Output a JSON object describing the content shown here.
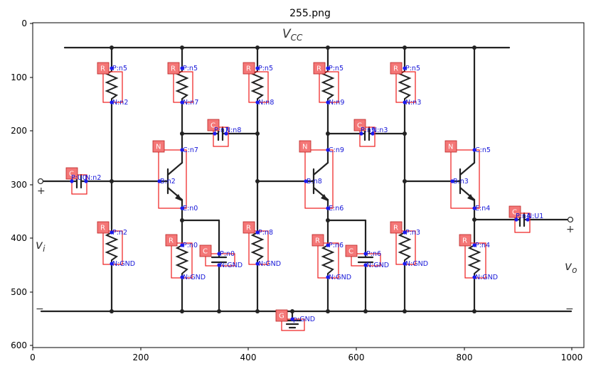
{
  "title": "255.png",
  "x_ticks": [
    "0",
    "200",
    "400",
    "600",
    "800",
    "1000"
  ],
  "y_ticks": [
    "0",
    "100",
    "200",
    "300",
    "400",
    "500",
    "600"
  ],
  "circuit_labels": {
    "vcc": "V",
    "vcc_sub": "CC",
    "vi": "v",
    "vi_sub": "i",
    "vo": "v",
    "vo_sub": "o",
    "plus_in": "+",
    "minus_in": "−",
    "plus_out": "+",
    "minus_out": "−"
  },
  "components": [
    {
      "id": "R1",
      "type": "R",
      "pins": [
        "P:n5",
        "N:n2"
      ]
    },
    {
      "id": "R2",
      "type": "R",
      "pins": [
        "P:n5",
        "N:n7"
      ]
    },
    {
      "id": "R3",
      "type": "R",
      "pins": [
        "P:n5",
        "N:n8"
      ]
    },
    {
      "id": "R4",
      "type": "R",
      "pins": [
        "P:n5",
        "N:n9"
      ]
    },
    {
      "id": "R5",
      "type": "R",
      "pins": [
        "P:n5",
        "N:n3"
      ]
    },
    {
      "id": "C1",
      "type": "C",
      "pins": [
        "P:U0",
        "N:n2"
      ]
    },
    {
      "id": "C2",
      "type": "C",
      "pins": [
        "P:n7",
        "N:n8"
      ]
    },
    {
      "id": "C3",
      "type": "C",
      "pins": [
        "P:n9",
        "N:n3"
      ]
    },
    {
      "id": "Q1",
      "type": "N",
      "pins": [
        "C:n7",
        "B:n2",
        "E:n0"
      ]
    },
    {
      "id": "Q2",
      "type": "N",
      "pins": [
        "C:n9",
        "B:n8",
        "E:n6"
      ]
    },
    {
      "id": "Q3",
      "type": "N",
      "pins": [
        "C:n5",
        "B:n3",
        "E:n4"
      ]
    },
    {
      "id": "R6",
      "type": "R",
      "pins": [
        "P:n2",
        "N:GND"
      ]
    },
    {
      "id": "R7",
      "type": "R",
      "pins": [
        "P:n0",
        "N:GND"
      ]
    },
    {
      "id": "C4",
      "type": "C",
      "pins": [
        "P:n0",
        "N:GND"
      ]
    },
    {
      "id": "R8",
      "type": "R",
      "pins": [
        "P:n8",
        "N:GND"
      ]
    },
    {
      "id": "R9",
      "type": "R",
      "pins": [
        "P:n6",
        "N:GND"
      ]
    },
    {
      "id": "C5",
      "type": "C",
      "pins": [
        "P:n6",
        "N:GND"
      ]
    },
    {
      "id": "R10",
      "type": "R",
      "pins": [
        "P:n3",
        "N:GND"
      ]
    },
    {
      "id": "R11",
      "type": "R",
      "pins": [
        "P:n4",
        "N:GND"
      ]
    },
    {
      "id": "C6",
      "type": "C",
      "pins": [
        "P:n4",
        "N:U1"
      ]
    },
    {
      "id": "G1",
      "type": "G",
      "pins": [
        "p:GND"
      ]
    }
  ]
}
